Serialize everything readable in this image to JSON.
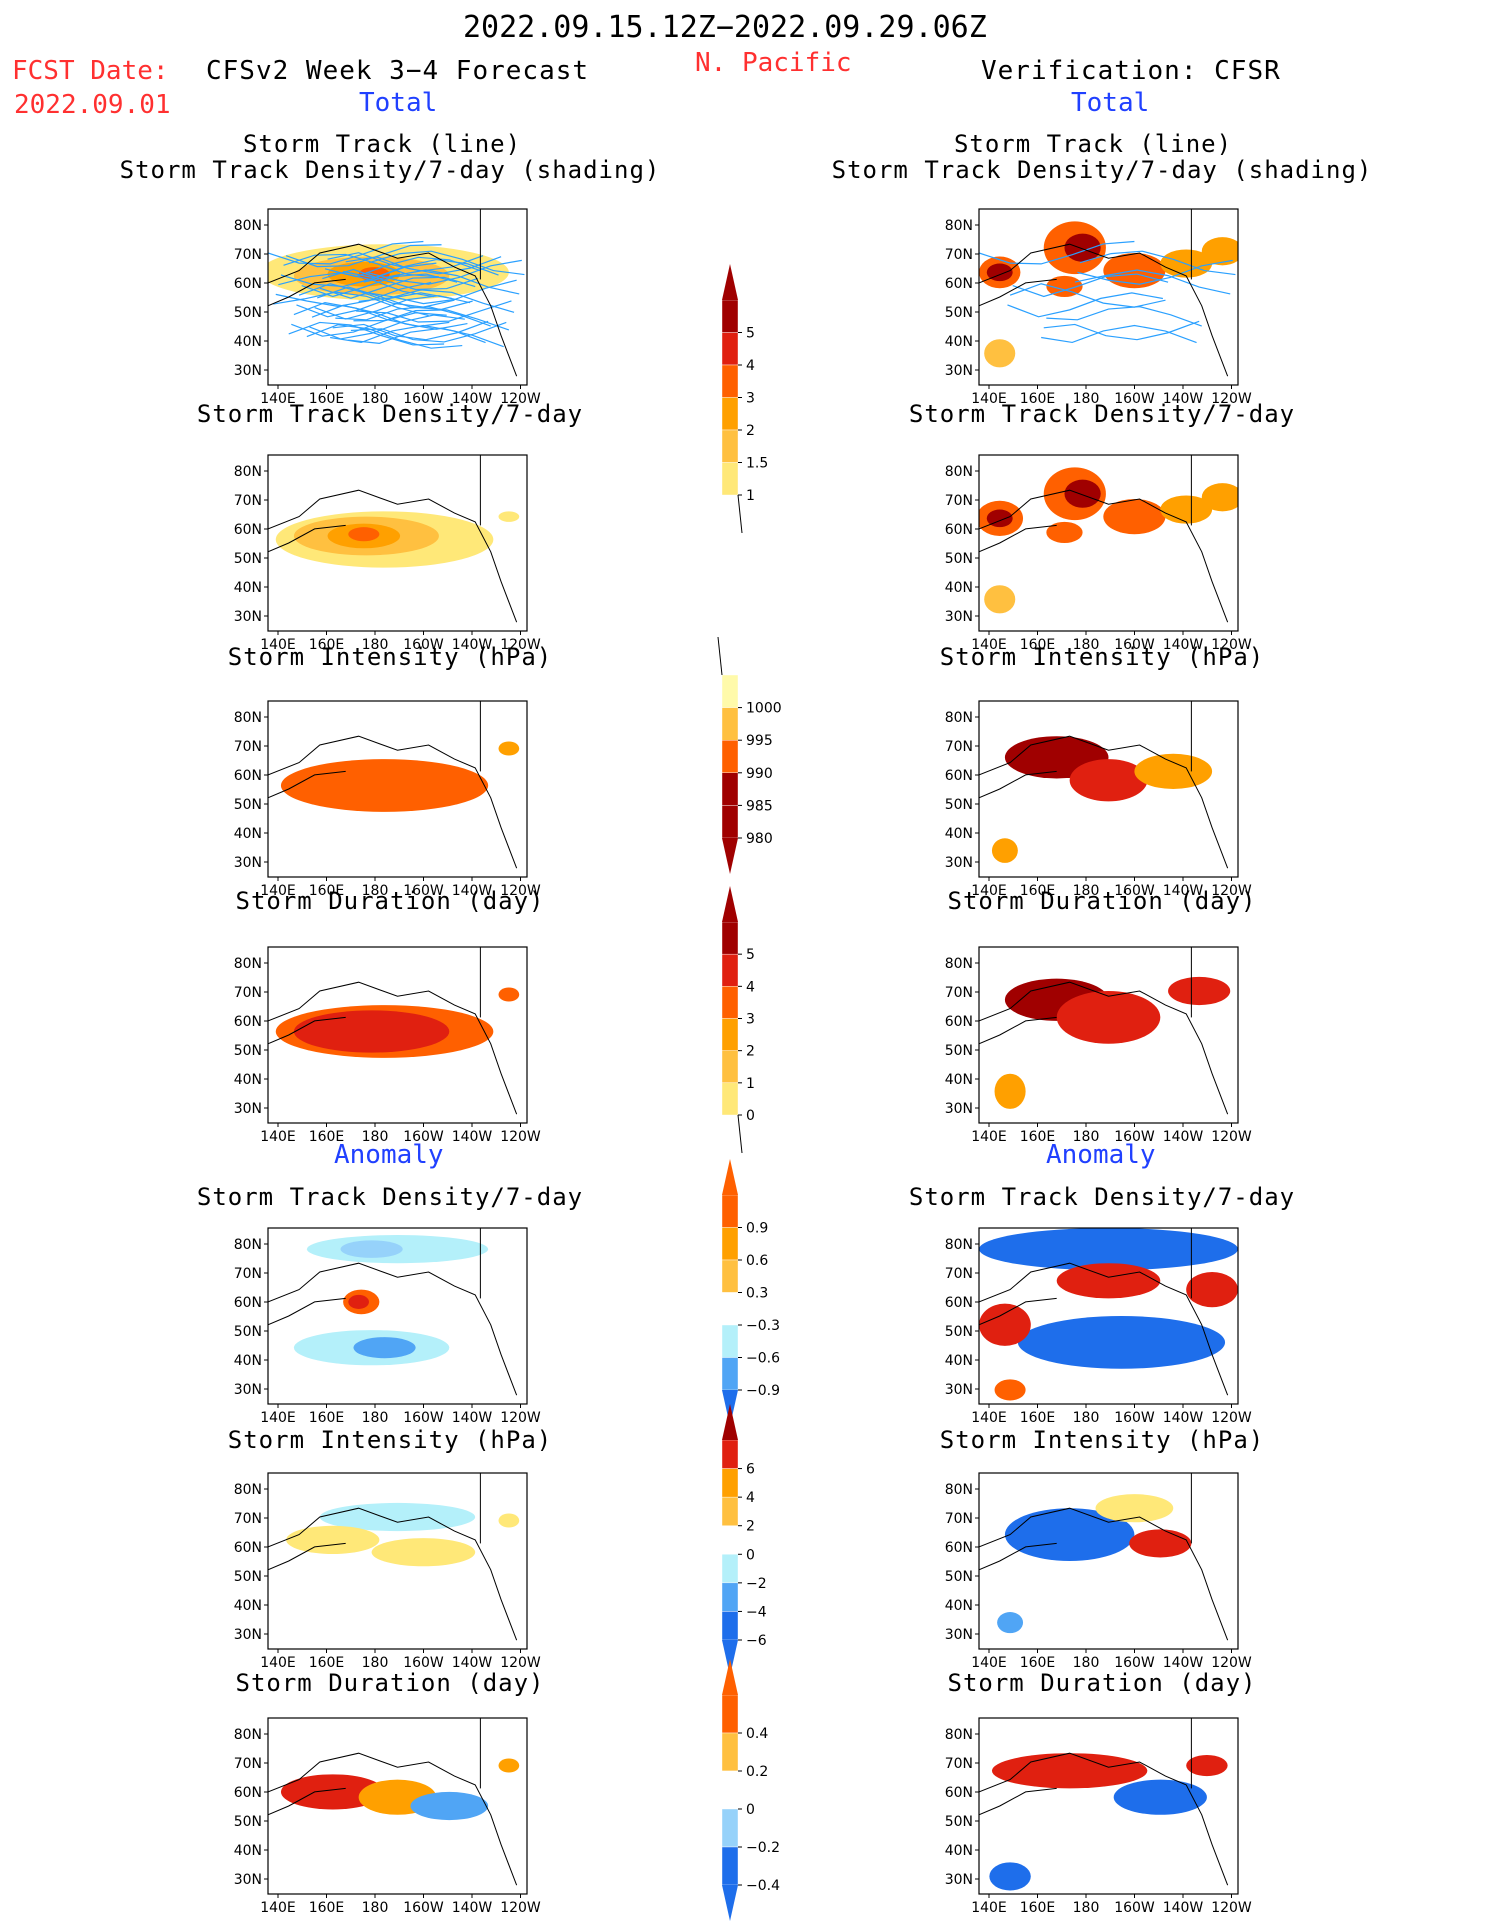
{
  "header": {
    "date_range": "2022.09.15.12Z−2022.09.29.06Z",
    "fcst_label": "FCST Date:",
    "fcst_date": "2022.09.01",
    "model": "CFSv2 Week 3−4 Forecast",
    "region": "N. Pacific",
    "verification": "Verification: CFSR"
  },
  "sections": {
    "total": "Total",
    "anomaly": "Anomaly"
  },
  "axes": {
    "lat_labels": [
      "80N",
      "70N",
      "60N",
      "50N",
      "40N",
      "30N"
    ],
    "lon_labels": [
      "140E",
      "160E",
      "180",
      "160W",
      "140W",
      "120W"
    ]
  },
  "colors": {
    "warm": [
      "#fffaaa",
      "#ffe878",
      "#ffc040",
      "#ffa000",
      "#ff6000",
      "#e02010",
      "#a00000"
    ],
    "cool": [
      "#b4f0fa",
      "#96d2fa",
      "#50a5f5",
      "#1e6eeb"
    ]
  },
  "colorbars": {
    "density_total": {
      "labels": [
        "5",
        "4",
        "3",
        "2",
        "1.5",
        "1"
      ]
    },
    "intensity_total": {
      "labels": [
        "1000",
        "995",
        "990",
        "985",
        "980"
      ]
    },
    "duration_total": {
      "labels": [
        "5",
        "4",
        "3",
        "2",
        "1",
        "0"
      ]
    },
    "density_anom": {
      "labels": [
        "0.9",
        "0.6",
        "0.3",
        "−0.3",
        "−0.6",
        "−0.9"
      ]
    },
    "intensity_anom": {
      "labels": [
        "6",
        "4",
        "2",
        "0",
        "−2",
        "−4",
        "−6"
      ]
    },
    "duration_anom": {
      "labels": [
        "0.4",
        "0.2",
        "0",
        "−0.2",
        "−0.4"
      ]
    }
  },
  "chart_data": [
    {
      "type": "heatmap",
      "panel": "forecast-total-track",
      "title": "Storm Track (line)",
      "subtitle": "Storm Track Density/7-day (shading)"
    },
    {
      "type": "heatmap",
      "panel": "verification-total-track",
      "title": "Storm Track (line)",
      "subtitle": "Storm Track Density/7-day (shading)"
    },
    {
      "type": "heatmap",
      "panel": "forecast-total-density",
      "title": "Storm Track Density/7-day"
    },
    {
      "type": "heatmap",
      "panel": "verification-total-density",
      "title": "Storm Track Density/7-day"
    },
    {
      "type": "heatmap",
      "panel": "forecast-total-intensity",
      "title": "Storm Intensity (hPa)"
    },
    {
      "type": "heatmap",
      "panel": "verification-total-intensity",
      "title": "Storm Intensity (hPa)"
    },
    {
      "type": "heatmap",
      "panel": "forecast-total-duration",
      "title": "Storm Duration (day)"
    },
    {
      "type": "heatmap",
      "panel": "verification-total-duration",
      "title": "Storm Duration (day)"
    },
    {
      "type": "heatmap",
      "panel": "forecast-anom-density",
      "title": "Storm Track Density/7-day"
    },
    {
      "type": "heatmap",
      "panel": "verification-anom-density",
      "title": "Storm Track Density/7-day"
    },
    {
      "type": "heatmap",
      "panel": "forecast-anom-intensity",
      "title": "Storm Intensity (hPa)"
    },
    {
      "type": "heatmap",
      "panel": "verification-anom-intensity",
      "title": "Storm Intensity (hPa)"
    },
    {
      "type": "heatmap",
      "panel": "forecast-anom-duration",
      "title": "Storm Duration (day)"
    },
    {
      "type": "heatmap",
      "panel": "verification-anom-duration",
      "title": "Storm Duration (day)"
    }
  ]
}
